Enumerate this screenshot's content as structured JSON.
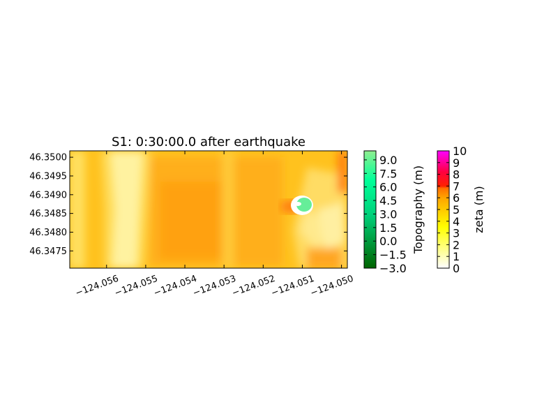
{
  "chart_data": {
    "type": "heatmap",
    "title": "S1: 0:30:00.0 after earthquake",
    "xlabel": "",
    "ylabel": "",
    "x_ticks": [
      "−124.056",
      "−124.055",
      "−124.054",
      "−124.053",
      "−124.052",
      "−124.051",
      "−124.050"
    ],
    "x_tick_values": [
      -124.056,
      -124.055,
      -124.054,
      -124.053,
      -124.052,
      -124.051,
      -124.05
    ],
    "xlim": [
      -124.05694,
      -124.04985
    ],
    "y_ticks": [
      "46.3475",
      "46.3480",
      "46.3485",
      "46.3490",
      "46.3495",
      "46.3500"
    ],
    "y_tick_values": [
      46.3475,
      46.348,
      46.3485,
      46.349,
      46.3495,
      46.35
    ],
    "ylim": [
      46.34704,
      46.35017
    ],
    "grid": false,
    "colorbars": [
      {
        "label": "Topography (m)",
        "ticks": [
          "−3.0",
          "−1.5",
          "0.0",
          "1.5",
          "3.0",
          "4.5",
          "6.0",
          "7.5",
          "9.0"
        ],
        "range": [
          -3.0,
          10.0
        ],
        "colors": [
          "#006400",
          "#00ff99",
          "#90ee90"
        ]
      },
      {
        "label": "zeta (m)",
        "ticks": [
          "0",
          "1",
          "2",
          "3",
          "4",
          "5",
          "6",
          "7",
          "8",
          "9",
          "10"
        ],
        "range": [
          0,
          10
        ],
        "colors": [
          "#ffffff",
          "#ffff00",
          "#ff8c00",
          "#ff0000",
          "#ff00ff"
        ]
      }
    ],
    "surface_range_m": [
      0,
      7
    ],
    "island": {
      "center": [
        -124.0508,
        46.34857
      ],
      "color": "#66ee99"
    }
  }
}
